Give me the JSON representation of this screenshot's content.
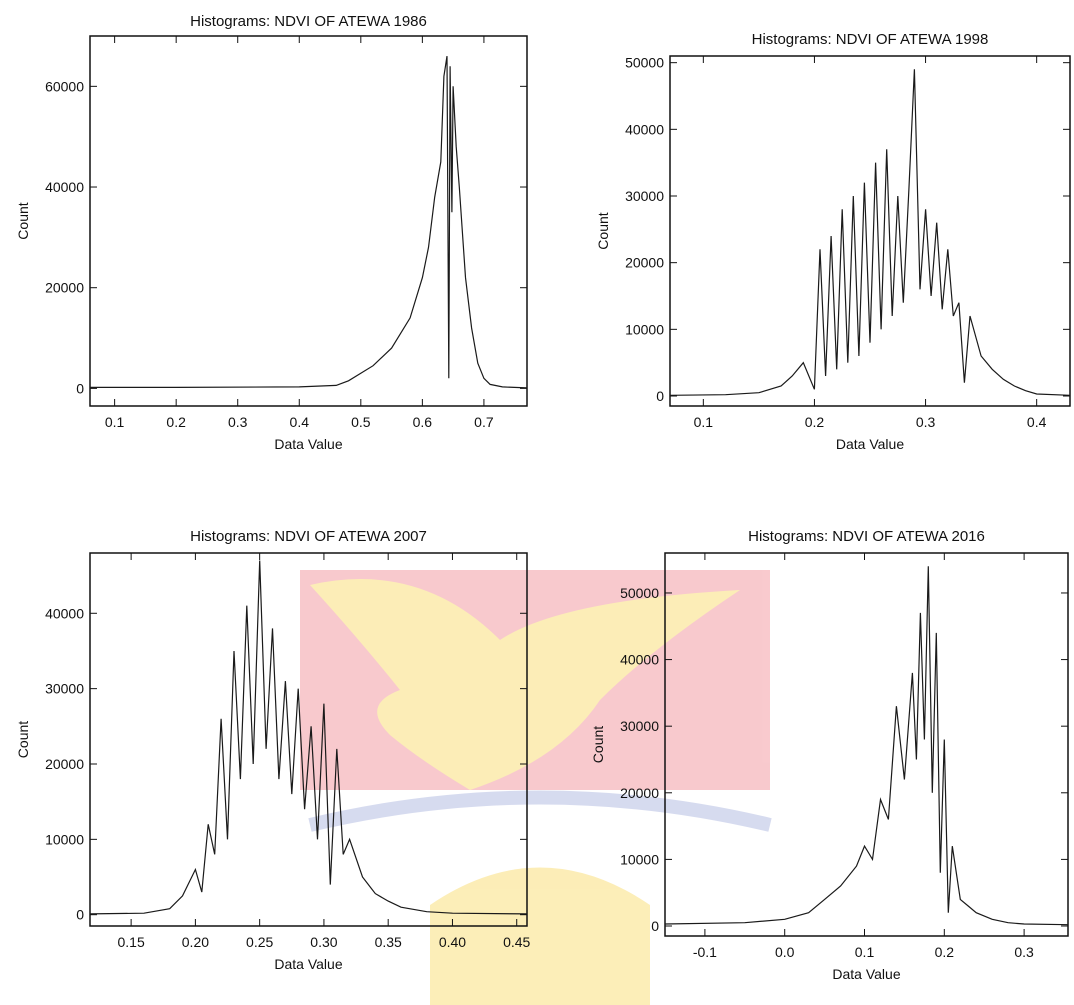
{
  "colors": {
    "background": "#ffffff",
    "line": "#1a1a1a",
    "watermark_red": "#e8414f",
    "watermark_gold": "#f5c200",
    "watermark_blue": "#6f7fc8"
  },
  "chart_data": [
    {
      "type": "line",
      "title": "Histograms: NDVI OF ATEWA 1986",
      "xlabel": "Data Value",
      "ylabel": "Count",
      "xlim": [
        0.06,
        0.77
      ],
      "ylim": [
        -3500,
        70000
      ],
      "xticks": [
        0.1,
        0.2,
        0.3,
        0.4,
        0.5,
        0.6,
        0.7
      ],
      "xtick_labels": [
        "0.1",
        "0.2",
        "0.3",
        "0.4",
        "0.5",
        "0.6",
        "0.7"
      ],
      "yticks": [
        0,
        20000,
        40000,
        60000
      ],
      "ytick_labels": [
        "0",
        "20000",
        "40000",
        "60000"
      ],
      "series": [
        {
          "x": [
            0.06,
            0.2,
            0.4,
            0.46,
            0.48,
            0.5,
            0.52,
            0.55,
            0.58,
            0.6,
            0.61,
            0.62,
            0.63,
            0.635,
            0.64,
            0.643,
            0.645,
            0.648,
            0.65,
            0.655,
            0.66,
            0.67,
            0.68,
            0.69,
            0.7,
            0.71,
            0.73,
            0.77
          ],
          "y": [
            200,
            200,
            300,
            600,
            1500,
            3000,
            4500,
            8000,
            14000,
            22000,
            28000,
            38000,
            45000,
            62000,
            66000,
            2000,
            64000,
            35000,
            60000,
            48000,
            40000,
            22000,
            12000,
            5000,
            2000,
            800,
            300,
            100
          ]
        }
      ]
    },
    {
      "type": "line",
      "title": "Histograms: NDVI OF ATEWA 1998",
      "xlabel": "Data Value",
      "ylabel": "Count",
      "xlim": [
        0.07,
        0.43
      ],
      "ylim": [
        -1500,
        51000
      ],
      "xticks": [
        0.1,
        0.2,
        0.3,
        0.4
      ],
      "xtick_labels": [
        "0.1",
        "0.2",
        "0.3",
        "0.4"
      ],
      "yticks": [
        0,
        10000,
        20000,
        30000,
        40000,
        50000
      ],
      "ytick_labels": [
        "0",
        "10000",
        "20000",
        "30000",
        "40000",
        "50000"
      ],
      "series": [
        {
          "x": [
            0.07,
            0.12,
            0.15,
            0.17,
            0.18,
            0.19,
            0.2,
            0.205,
            0.21,
            0.215,
            0.22,
            0.225,
            0.23,
            0.235,
            0.24,
            0.245,
            0.25,
            0.255,
            0.26,
            0.265,
            0.27,
            0.275,
            0.28,
            0.285,
            0.29,
            0.295,
            0.3,
            0.305,
            0.31,
            0.315,
            0.32,
            0.325,
            0.33,
            0.335,
            0.34,
            0.35,
            0.36,
            0.37,
            0.38,
            0.39,
            0.4,
            0.43
          ],
          "y": [
            100,
            200,
            500,
            1500,
            3000,
            5000,
            1000,
            22000,
            3000,
            24000,
            4000,
            28000,
            5000,
            30000,
            6000,
            32000,
            8000,
            35000,
            10000,
            37000,
            12000,
            30000,
            14000,
            31000,
            49000,
            16000,
            28000,
            15000,
            26000,
            13000,
            22000,
            12000,
            14000,
            2000,
            12000,
            6000,
            4000,
            2500,
            1500,
            800,
            300,
            100
          ]
        }
      ]
    },
    {
      "type": "line",
      "title": "Histograms: NDVI OF ATEWA 2007",
      "xlabel": "Data Value",
      "ylabel": "Count",
      "xlim": [
        0.118,
        0.458
      ],
      "ylim": [
        -1500,
        48000
      ],
      "xticks": [
        0.15,
        0.2,
        0.25,
        0.3,
        0.35,
        0.4,
        0.45
      ],
      "xtick_labels": [
        "0.15",
        "0.20",
        "0.25",
        "0.30",
        "0.35",
        "0.40",
        "0.45"
      ],
      "yticks": [
        0,
        10000,
        20000,
        30000,
        40000
      ],
      "ytick_labels": [
        "0",
        "10000",
        "20000",
        "30000",
        "40000"
      ],
      "series": [
        {
          "x": [
            0.118,
            0.16,
            0.18,
            0.19,
            0.2,
            0.205,
            0.21,
            0.215,
            0.22,
            0.225,
            0.23,
            0.235,
            0.24,
            0.245,
            0.25,
            0.255,
            0.26,
            0.265,
            0.27,
            0.275,
            0.28,
            0.285,
            0.29,
            0.295,
            0.3,
            0.305,
            0.31,
            0.315,
            0.32,
            0.33,
            0.34,
            0.35,
            0.36,
            0.38,
            0.4,
            0.458
          ],
          "y": [
            100,
            200,
            800,
            2500,
            6000,
            3000,
            12000,
            8000,
            26000,
            10000,
            35000,
            18000,
            41000,
            20000,
            47000,
            22000,
            38000,
            18000,
            31000,
            16000,
            30000,
            14000,
            25000,
            10000,
            28000,
            4000,
            22000,
            8000,
            10000,
            5000,
            2800,
            1800,
            1000,
            400,
            200,
            100
          ]
        }
      ]
    },
    {
      "type": "line",
      "title": "Histograms: NDVI OF ATEWA 2016",
      "xlabel": "Data Value",
      "ylabel": "Count",
      "xlim": [
        -0.15,
        0.355
      ],
      "ylim": [
        -1500,
        56000
      ],
      "xticks": [
        -0.1,
        0.0,
        0.1,
        0.2,
        0.3
      ],
      "xtick_labels": [
        "-0.1",
        "0.0",
        "0.1",
        "0.2",
        "0.3"
      ],
      "yticks": [
        0,
        10000,
        20000,
        30000,
        40000,
        50000
      ],
      "ytick_labels": [
        "0",
        "10000",
        "20000",
        "30000",
        "40000",
        "50000"
      ],
      "series": [
        {
          "x": [
            -0.15,
            -0.05,
            0.0,
            0.03,
            0.05,
            0.07,
            0.09,
            0.1,
            0.11,
            0.12,
            0.13,
            0.14,
            0.15,
            0.16,
            0.165,
            0.17,
            0.175,
            0.18,
            0.185,
            0.19,
            0.195,
            0.2,
            0.205,
            0.21,
            0.22,
            0.23,
            0.24,
            0.26,
            0.28,
            0.3,
            0.355
          ],
          "y": [
            300,
            500,
            1000,
            2000,
            4000,
            6000,
            9000,
            12000,
            10000,
            19000,
            16000,
            33000,
            22000,
            38000,
            25000,
            47000,
            28000,
            54000,
            20000,
            44000,
            8000,
            28000,
            2000,
            12000,
            4000,
            3000,
            2000,
            1000,
            500,
            300,
            200
          ]
        }
      ]
    }
  ]
}
